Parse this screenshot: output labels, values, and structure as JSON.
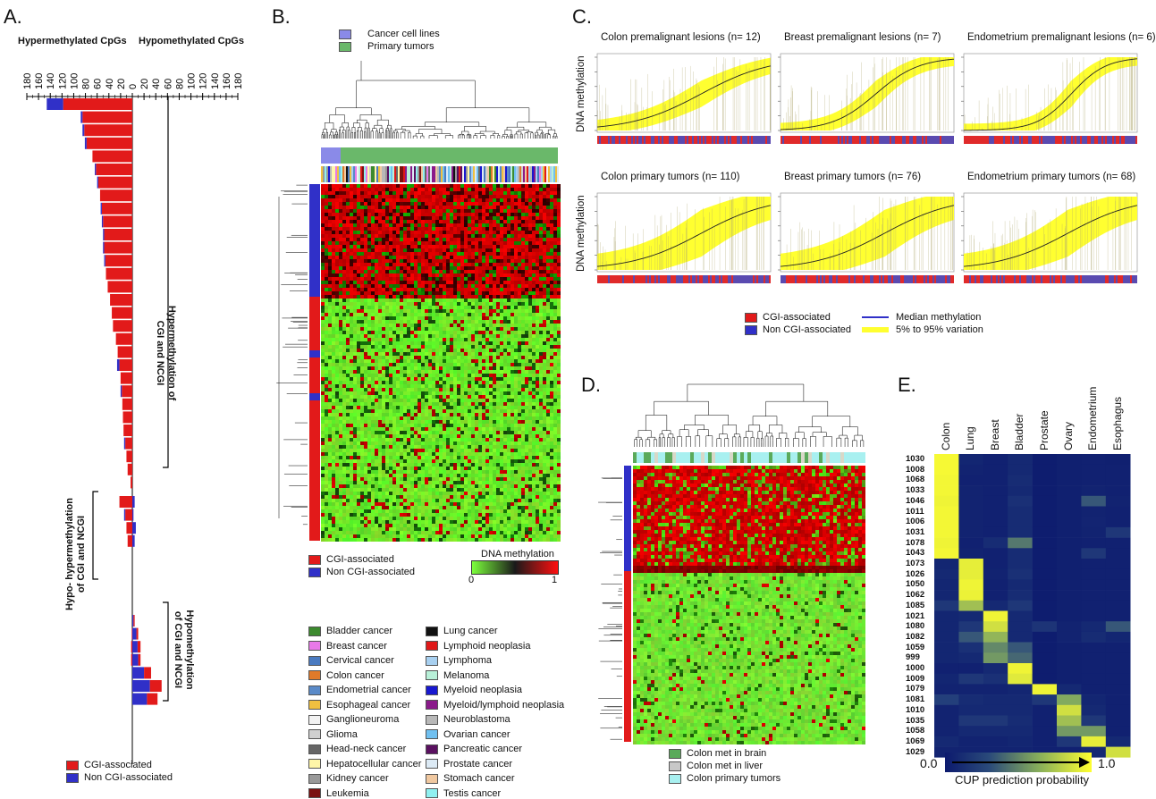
{
  "panels": {
    "a": {
      "letter": "A.",
      "hyper_title": "Hypermethylated CpGs",
      "hypo_title": "Hypomethylated CpGs",
      "group1": "Hypermethylation of CGI and NCGI",
      "group2a": "Hypo- hypermethylation",
      "group2b": "of CGI and NCGI",
      "group3a": "Hypomethylation",
      "group3b": "of CGI and NCGI",
      "legend_cgi": "CGI-associated",
      "legend_ncgi": "Non CGI-associated"
    },
    "b": {
      "letter": "B.",
      "legend_cell": "Cancer cell lines",
      "legend_primary": "Primary tumors",
      "legend_cgi": "CGI-associated",
      "legend_ncgi": "Non CGI-associated",
      "scale_title": "DNA methylation",
      "scale_min": "0",
      "scale_max": "1"
    },
    "c": {
      "letter": "C.",
      "ylabel": "DNA methylation",
      "legend_cgi": "CGI-associated",
      "legend_ncgi": "Non CGI-associated",
      "legend_median": "Median methylation",
      "legend_var": "5% to 95% variation"
    },
    "d": {
      "letter": "D.",
      "legend_brain": "Colon met in brain",
      "legend_liver": "Colon met in liver",
      "legend_primary": "Colon primary tumors"
    },
    "e": {
      "letter": "E.",
      "scale_min": "0.0",
      "scale_max": "1.0",
      "scale_title": "CUP prediction probability"
    }
  },
  "cancer_types": {
    "col1": [
      {
        "label": "Bladder cancer",
        "color": "#3c8a2e"
      },
      {
        "label": "Breast cancer",
        "color": "#e879e8"
      },
      {
        "label": "Cervical cancer",
        "color": "#4a7ac0"
      },
      {
        "label": "Colon cancer",
        "color": "#e07a2a"
      },
      {
        "label": "Endometrial cancer",
        "color": "#5a8ac8"
      },
      {
        "label": "Esophageal cancer",
        "color": "#f0c040"
      },
      {
        "label": "Ganglioneuroma",
        "color": "#f2f2f2"
      },
      {
        "label": "Glioma",
        "color": "#d0d0d0"
      },
      {
        "label": "Head-neck cancer",
        "color": "#666666"
      },
      {
        "label": "Hepatocellular cancer",
        "color": "#fff6a8"
      },
      {
        "label": "Kidney cancer",
        "color": "#999999"
      },
      {
        "label": "Leukemia",
        "color": "#7a1010"
      }
    ],
    "col2": [
      {
        "label": "Lung cancer",
        "color": "#111111"
      },
      {
        "label": "Lymphoid neoplasia",
        "color": "#e01818"
      },
      {
        "label": "Lymphoma",
        "color": "#a8d0f0"
      },
      {
        "label": "Melanoma",
        "color": "#b8f0d8"
      },
      {
        "label": "Myeloid neoplasia",
        "color": "#1818d0"
      },
      {
        "label": "Myeloid/lymphoid neoplasia",
        "color": "#8a1a8a"
      },
      {
        "label": "Neuroblastoma",
        "color": "#b8b8b8"
      },
      {
        "label": "Ovarian cancer",
        "color": "#70c0f0"
      },
      {
        "label": "Pancreatic cancer",
        "color": "#5a1060"
      },
      {
        "label": "Prostate cancer",
        "color": "#dceaf5"
      },
      {
        "label": "Stomach cancer",
        "color": "#f0c8a0"
      },
      {
        "label": "Testis cancer",
        "color": "#90f0f0"
      }
    ]
  },
  "chart_data": [
    {
      "type": "bar",
      "panel": "A",
      "orientation": "horizontal",
      "xlabel_left": "Hypermethylated CpGs",
      "xlabel_right": "Hypomethylated CpGs",
      "xticks": [
        "180",
        "160",
        "140",
        "120",
        "100",
        "80",
        "60",
        "40",
        "20",
        "0",
        "20",
        "40",
        "60",
        "80",
        "100",
        "120",
        "140",
        "160",
        "180"
      ],
      "xlim": [
        -180,
        180
      ],
      "series": [
        {
          "name": "CGI-associated",
          "color": "#e21a1a",
          "hyper": [
            118,
            85,
            82,
            78,
            68,
            62,
            58,
            55,
            52,
            50,
            48,
            48,
            46,
            45,
            42,
            38,
            35,
            33,
            28,
            25,
            22,
            20,
            18,
            17,
            16,
            15,
            12,
            10,
            8,
            3,
            22,
            12,
            10,
            8,
            0,
            0,
            1,
            2,
            2,
            0,
            0,
            0
          ],
          "hypo": [
            0,
            0,
            0,
            0,
            0,
            0,
            0,
            0,
            0,
            0,
            0,
            0,
            0,
            0,
            0,
            0,
            0,
            0,
            0,
            0,
            0,
            0,
            0,
            0,
            0,
            0,
            0,
            0,
            0,
            0,
            0,
            0,
            0,
            0,
            0,
            2,
            3,
            5,
            4,
            12,
            20,
            18
          ]
        },
        {
          "name": "Non CGI-associated",
          "color": "#3030c8",
          "hyper": [
            28,
            3,
            3,
            3,
            0,
            2,
            2,
            0,
            2,
            2,
            2,
            2,
            2,
            0,
            0,
            0,
            0,
            0,
            0,
            0,
            4,
            0,
            2,
            0,
            0,
            0,
            2,
            0,
            0,
            0,
            0,
            2,
            0,
            0,
            0,
            0,
            0,
            0,
            0,
            0,
            0,
            0
          ],
          "hypo": [
            0,
            0,
            0,
            0,
            0,
            0,
            0,
            0,
            0,
            0,
            0,
            0,
            0,
            0,
            0,
            0,
            0,
            0,
            0,
            0,
            0,
            0,
            0,
            0,
            0,
            0,
            0,
            0,
            0,
            0,
            4,
            2,
            6,
            4,
            0,
            2,
            7,
            9,
            10,
            20,
            30,
            25
          ]
        }
      ]
    },
    {
      "type": "heatmap",
      "panel": "E",
      "columns": [
        "Colon",
        "Lung",
        "Breast",
        "Bladder",
        "Prostate",
        "Ovary",
        "Endometrium",
        "Esophagus"
      ],
      "rows": [
        "1030",
        "1008",
        "1068",
        "1033",
        "1046",
        "1011",
        "1006",
        "1031",
        "1078",
        "1043",
        "1073",
        "1026",
        "1050",
        "1062",
        "1085",
        "1021",
        "1080",
        "1082",
        "1059",
        "999",
        "1000",
        "1009",
        "1079",
        "1081",
        "1010",
        "1035",
        "1058",
        "1069",
        "1029"
      ],
      "values": [
        [
          0.97,
          0.08,
          0.05,
          0.1,
          0.02,
          0.04,
          0.05,
          0.04
        ],
        [
          0.97,
          0.06,
          0.05,
          0.1,
          0.02,
          0.04,
          0.05,
          0.05
        ],
        [
          0.96,
          0.05,
          0.05,
          0.12,
          0.02,
          0.04,
          0.05,
          0.05
        ],
        [
          0.96,
          0.06,
          0.05,
          0.1,
          0.02,
          0.04,
          0.06,
          0.05
        ],
        [
          0.95,
          0.06,
          0.05,
          0.15,
          0.02,
          0.04,
          0.35,
          0.06
        ],
        [
          0.96,
          0.06,
          0.05,
          0.12,
          0.02,
          0.04,
          0.06,
          0.05
        ],
        [
          0.96,
          0.06,
          0.05,
          0.12,
          0.02,
          0.04,
          0.07,
          0.05
        ],
        [
          0.96,
          0.06,
          0.05,
          0.12,
          0.02,
          0.04,
          0.06,
          0.2
        ],
        [
          0.95,
          0.05,
          0.12,
          0.45,
          0.02,
          0.04,
          0.05,
          0.05
        ],
        [
          0.96,
          0.06,
          0.05,
          0.12,
          0.02,
          0.04,
          0.2,
          0.05
        ],
        [
          0.08,
          0.92,
          0.05,
          0.12,
          0.02,
          0.04,
          0.05,
          0.05
        ],
        [
          0.1,
          0.92,
          0.06,
          0.15,
          0.02,
          0.04,
          0.05,
          0.05
        ],
        [
          0.08,
          0.95,
          0.05,
          0.1,
          0.02,
          0.04,
          0.05,
          0.05
        ],
        [
          0.08,
          0.94,
          0.05,
          0.12,
          0.02,
          0.04,
          0.05,
          0.05
        ],
        [
          0.2,
          0.7,
          0.1,
          0.2,
          0.02,
          0.04,
          0.05,
          0.05
        ],
        [
          0.08,
          0.1,
          0.95,
          0.1,
          0.02,
          0.04,
          0.05,
          0.05
        ],
        [
          0.08,
          0.2,
          0.85,
          0.1,
          0.18,
          0.06,
          0.1,
          0.35
        ],
        [
          0.08,
          0.35,
          0.65,
          0.1,
          0.02,
          0.06,
          0.12,
          0.08
        ],
        [
          0.08,
          0.15,
          0.5,
          0.35,
          0.02,
          0.04,
          0.05,
          0.05
        ],
        [
          0.08,
          0.1,
          0.55,
          0.4,
          0.02,
          0.04,
          0.05,
          0.05
        ],
        [
          0.05,
          0.05,
          0.1,
          0.95,
          0.02,
          0.04,
          0.05,
          0.05
        ],
        [
          0.08,
          0.2,
          0.15,
          0.9,
          0.02,
          0.04,
          0.05,
          0.05
        ],
        [
          0.06,
          0.06,
          0.06,
          0.08,
          0.95,
          0.1,
          0.05,
          0.05
        ],
        [
          0.25,
          0.12,
          0.1,
          0.1,
          0.2,
          0.6,
          0.08,
          0.05
        ],
        [
          0.06,
          0.1,
          0.1,
          0.1,
          0.05,
          0.85,
          0.1,
          0.05
        ],
        [
          0.06,
          0.2,
          0.2,
          0.12,
          0.05,
          0.7,
          0.2,
          0.05
        ],
        [
          0.06,
          0.1,
          0.1,
          0.1,
          0.05,
          0.55,
          0.55,
          0.05
        ],
        [
          0.1,
          0.06,
          0.06,
          0.08,
          0.05,
          0.2,
          0.92,
          0.1
        ],
        [
          0.06,
          0.06,
          0.06,
          0.06,
          0.05,
          0.05,
          0.1,
          0.85
        ]
      ]
    },
    {
      "type": "area",
      "panel": "C",
      "subplots": [
        {
          "title": "Colon premalignant lesions (n= 12)"
        },
        {
          "title": "Breast premalignant lesions (n= 7)"
        },
        {
          "title": "Endometrium premalignant lesions (n= 6)"
        },
        {
          "title": "Colon primary tumors (n= 110)"
        },
        {
          "title": "Breast primary tumors  (n= 76)"
        },
        {
          "title": "Endometrium primary tumors  (n= 68)"
        }
      ]
    }
  ]
}
